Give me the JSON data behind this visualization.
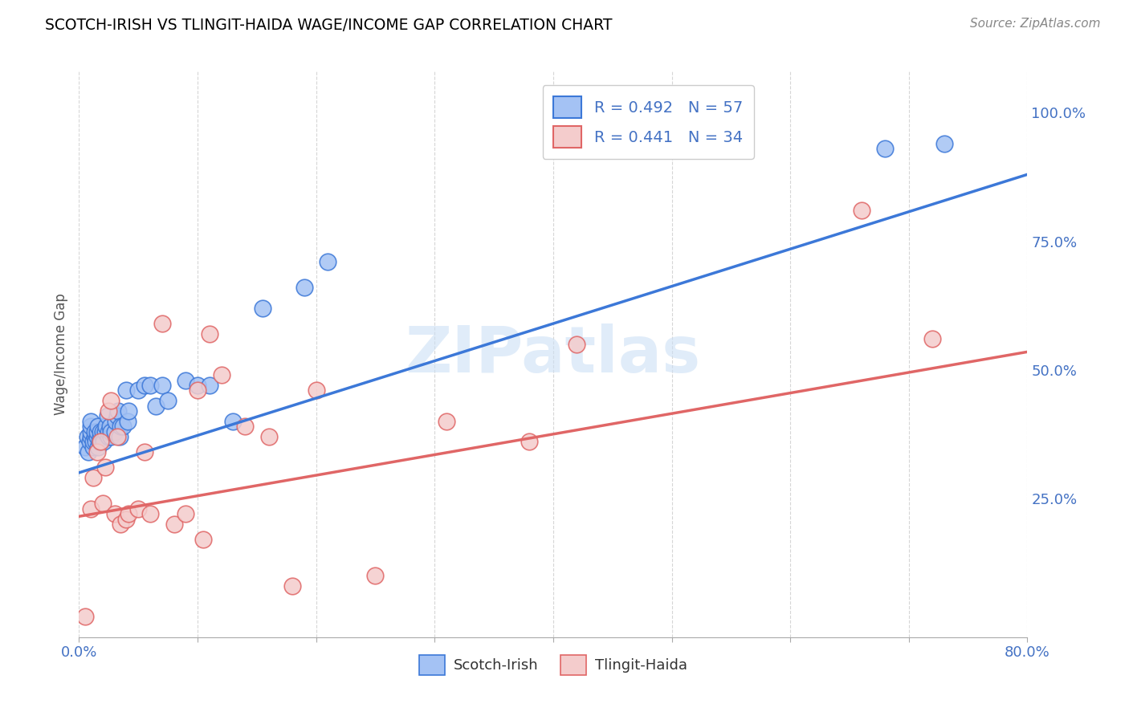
{
  "title": "SCOTCH-IRISH VS TLINGIT-HAIDA WAGE/INCOME GAP CORRELATION CHART",
  "source": "Source: ZipAtlas.com",
  "ylabel": "Wage/Income Gap",
  "xlim": [
    0.0,
    0.8
  ],
  "ylim": [
    -0.02,
    1.08
  ],
  "xticks": [
    0.0,
    0.1,
    0.2,
    0.3,
    0.4,
    0.5,
    0.6,
    0.7,
    0.8
  ],
  "xticklabels": [
    "0.0%",
    "",
    "",
    "",
    "",
    "",
    "",
    "",
    "80.0%"
  ],
  "yticks_right": [
    0.25,
    0.5,
    0.75,
    1.0
  ],
  "ytick_labels_right": [
    "25.0%",
    "50.0%",
    "75.0%",
    "100.0%"
  ],
  "blue_color": "#a4c2f4",
  "pink_color": "#f4cccc",
  "line_blue": "#3c78d8",
  "line_pink": "#e06666",
  "text_blue": "#4472c4",
  "grid_color": "#cccccc",
  "watermark": "ZIPatlas",
  "blue_line_x0": 0.0,
  "blue_line_y0": 0.3,
  "blue_line_x1": 0.8,
  "blue_line_y1": 0.88,
  "pink_line_x0": 0.0,
  "pink_line_y0": 0.215,
  "pink_line_x1": 0.8,
  "pink_line_y1": 0.535,
  "scotch_irish_x": [
    0.005,
    0.007,
    0.008,
    0.009,
    0.01,
    0.01,
    0.01,
    0.01,
    0.012,
    0.012,
    0.013,
    0.013,
    0.014,
    0.015,
    0.015,
    0.016,
    0.016,
    0.017,
    0.018,
    0.018,
    0.019,
    0.02,
    0.02,
    0.021,
    0.022,
    0.023,
    0.024,
    0.025,
    0.025,
    0.026,
    0.027,
    0.027,
    0.03,
    0.031,
    0.032,
    0.033,
    0.034,
    0.035,
    0.037,
    0.04,
    0.041,
    0.042,
    0.05,
    0.055,
    0.06,
    0.065,
    0.07,
    0.075,
    0.09,
    0.1,
    0.11,
    0.13,
    0.155,
    0.19,
    0.21,
    0.68,
    0.73
  ],
  "scotch_irish_y": [
    0.35,
    0.37,
    0.34,
    0.36,
    0.37,
    0.38,
    0.39,
    0.4,
    0.35,
    0.36,
    0.37,
    0.38,
    0.36,
    0.37,
    0.38,
    0.39,
    0.35,
    0.36,
    0.37,
    0.38,
    0.36,
    0.37,
    0.38,
    0.36,
    0.38,
    0.39,
    0.41,
    0.37,
    0.38,
    0.39,
    0.37,
    0.38,
    0.38,
    0.4,
    0.41,
    0.42,
    0.37,
    0.39,
    0.39,
    0.46,
    0.4,
    0.42,
    0.46,
    0.47,
    0.47,
    0.43,
    0.47,
    0.44,
    0.48,
    0.47,
    0.47,
    0.4,
    0.62,
    0.66,
    0.71,
    0.93,
    0.94
  ],
  "tlingit_haida_x": [
    0.005,
    0.01,
    0.012,
    0.015,
    0.018,
    0.02,
    0.022,
    0.025,
    0.027,
    0.03,
    0.032,
    0.035,
    0.04,
    0.042,
    0.05,
    0.055,
    0.06,
    0.07,
    0.08,
    0.09,
    0.1,
    0.105,
    0.11,
    0.12,
    0.14,
    0.16,
    0.18,
    0.2,
    0.25,
    0.31,
    0.38,
    0.42,
    0.66,
    0.72
  ],
  "tlingit_haida_y": [
    0.02,
    0.23,
    0.29,
    0.34,
    0.36,
    0.24,
    0.31,
    0.42,
    0.44,
    0.22,
    0.37,
    0.2,
    0.21,
    0.22,
    0.23,
    0.34,
    0.22,
    0.59,
    0.2,
    0.22,
    0.46,
    0.17,
    0.57,
    0.49,
    0.39,
    0.37,
    0.08,
    0.46,
    0.1,
    0.4,
    0.36,
    0.55,
    0.81,
    0.56
  ]
}
